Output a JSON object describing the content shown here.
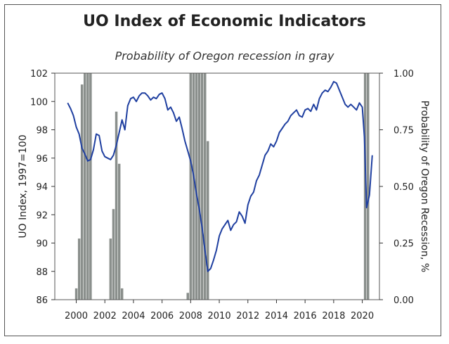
{
  "chart_data": {
    "type": "line",
    "title": "UO Index of Economic Indicators",
    "subtitle": "Probability of Oregon recession in gray",
    "ylabel_left": "UO Index, 1997=100",
    "ylabel_right": "Probability of Oregon Recession, %",
    "xlim": [
      1998.5,
      2021.2
    ],
    "ylim_left": [
      86,
      102
    ],
    "ylim_right": [
      0,
      1
    ],
    "x_ticks": [
      "2000",
      "2002",
      "2004",
      "2006",
      "2008",
      "2010",
      "2012",
      "2014",
      "2016",
      "2018",
      "2020"
    ],
    "y_ticks_left": [
      "86",
      "88",
      "90",
      "92",
      "94",
      "96",
      "98",
      "100",
      "102"
    ],
    "y_ticks_right": [
      "0.00",
      "0.25",
      "0.50",
      "0.75",
      "1.00"
    ],
    "grid": false,
    "colors": {
      "line": "#1f3fa0",
      "bars": "#8a8f8c"
    },
    "series": [
      {
        "type": "line",
        "x": [
          1999.4,
          1999.6,
          1999.8,
          2000.0,
          2000.2,
          2000.4,
          2000.6,
          2000.8,
          2001.0,
          2001.2,
          2001.4,
          2001.6,
          2001.8,
          2002.0,
          2002.2,
          2002.4,
          2002.6,
          2002.8,
          2003.0,
          2003.2,
          2003.4,
          2003.6,
          2003.8,
          2004.0,
          2004.2,
          2004.4,
          2004.6,
          2004.8,
          2005.0,
          2005.2,
          2005.4,
          2005.6,
          2005.8,
          2006.0,
          2006.2,
          2006.4,
          2006.6,
          2006.8,
          2007.0,
          2007.2,
          2007.4,
          2007.6,
          2007.8,
          2008.0,
          2008.2,
          2008.4,
          2008.6,
          2008.8,
          2009.0,
          2009.2,
          2009.4,
          2009.6,
          2009.8,
          2010.0,
          2010.2,
          2010.4,
          2010.6,
          2010.8,
          2011.0,
          2011.2,
          2011.4,
          2011.6,
          2011.8,
          2012.0,
          2012.2,
          2012.4,
          2012.6,
          2012.8,
          2013.0,
          2013.2,
          2013.4,
          2013.6,
          2013.8,
          2014.0,
          2014.2,
          2014.4,
          2014.6,
          2014.8,
          2015.0,
          2015.2,
          2015.4,
          2015.6,
          2015.8,
          2016.0,
          2016.2,
          2016.4,
          2016.6,
          2016.8,
          2017.0,
          2017.2,
          2017.4,
          2017.6,
          2017.8,
          2018.0,
          2018.2,
          2018.4,
          2018.6,
          2018.8,
          2019.0,
          2019.2,
          2019.4,
          2019.6,
          2019.8,
          2020.0,
          2020.15,
          2020.3,
          2020.5,
          2020.7
        ],
        "values": [
          99.9,
          99.5,
          99.0,
          98.2,
          97.7,
          96.7,
          96.3,
          95.8,
          95.9,
          96.6,
          97.7,
          97.6,
          96.5,
          96.1,
          96.0,
          95.9,
          96.2,
          96.9,
          97.8,
          98.7,
          98.0,
          99.7,
          100.2,
          100.3,
          100.0,
          100.4,
          100.6,
          100.6,
          100.4,
          100.1,
          100.3,
          100.2,
          100.5,
          100.6,
          100.2,
          99.4,
          99.6,
          99.2,
          98.6,
          98.9,
          98.1,
          97.2,
          96.5,
          95.8,
          94.8,
          93.5,
          92.4,
          91.1,
          89.5,
          88.0,
          88.2,
          88.8,
          89.5,
          90.5,
          91.0,
          91.3,
          91.6,
          90.9,
          91.3,
          91.5,
          92.2,
          91.9,
          91.4,
          92.7,
          93.3,
          93.6,
          94.4,
          94.8,
          95.5,
          96.2,
          96.5,
          97.0,
          96.8,
          97.2,
          97.8,
          98.1,
          98.4,
          98.6,
          99.0,
          99.2,
          99.4,
          99.0,
          98.9,
          99.4,
          99.5,
          99.3,
          99.8,
          99.4,
          100.2,
          100.6,
          100.8,
          100.7,
          101.0,
          101.4,
          101.3,
          100.8,
          100.3,
          99.8,
          99.6,
          99.8,
          99.6,
          99.4,
          99.9,
          99.6,
          97.5,
          92.5,
          93.4,
          96.2
        ]
      },
      {
        "type": "bar",
        "x": [
          2000.0,
          2000.2,
          2000.4,
          2000.6,
          2000.8,
          2001.0,
          2002.4,
          2002.6,
          2002.8,
          2003.0,
          2003.2,
          2007.8,
          2008.0,
          2008.2,
          2008.4,
          2008.6,
          2008.8,
          2009.0,
          2009.2,
          2020.2,
          2020.4
        ],
        "values": [
          0.05,
          0.27,
          0.95,
          1.0,
          1.0,
          1.0,
          0.27,
          0.4,
          0.83,
          0.6,
          0.05,
          0.03,
          1.0,
          1.0,
          1.0,
          1.0,
          1.0,
          1.0,
          0.7,
          1.0,
          1.0
        ]
      }
    ]
  }
}
